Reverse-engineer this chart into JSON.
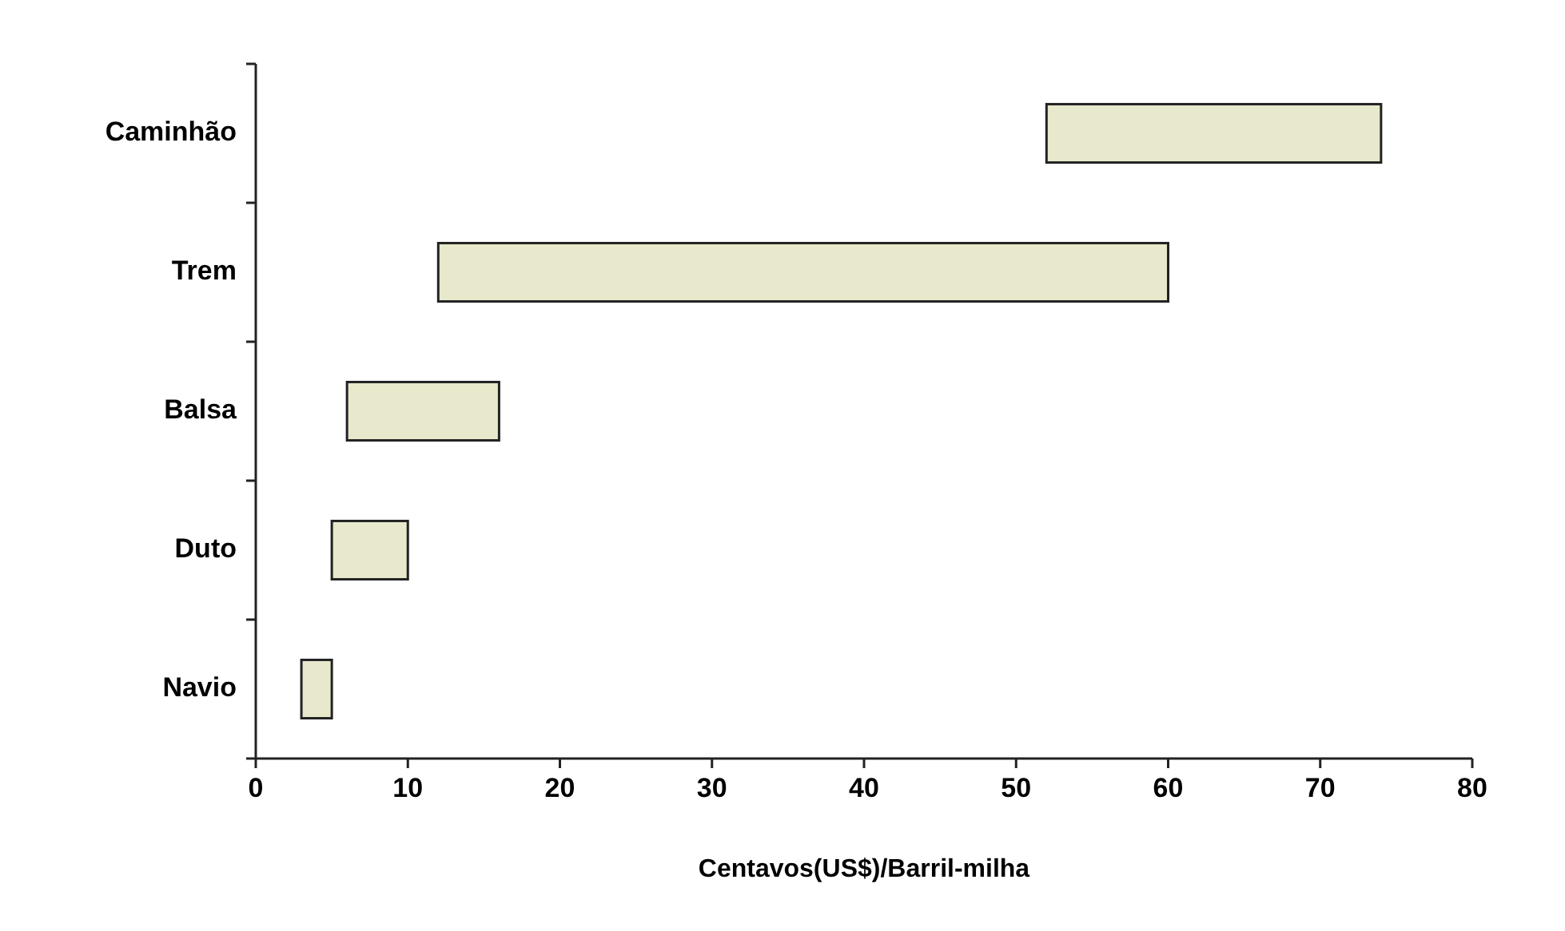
{
  "chart_data": {
    "type": "bar",
    "orientation": "horizontal",
    "categories": [
      "Caminhão",
      "Trem",
      "Balsa",
      "Duto",
      "Navio"
    ],
    "base": [
      52,
      12,
      6,
      5,
      3
    ],
    "values": [
      22,
      48,
      10,
      5,
      2
    ],
    "color": "#e8e8cc",
    "xlabel": "Centavos(US$)/Barril-milha",
    "xlim": [
      0,
      80
    ],
    "xticks": [
      0,
      10,
      20,
      30,
      40,
      50,
      60,
      70,
      80
    ],
    "grid": false
  }
}
